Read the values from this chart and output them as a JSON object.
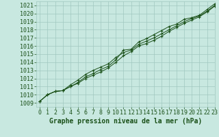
{
  "xlabel": "Graphe pression niveau de la mer (hPa)",
  "ylim": [
    1008.5,
    1021.5
  ],
  "xlim": [
    -0.5,
    23
  ],
  "yticks": [
    1009,
    1010,
    1011,
    1012,
    1013,
    1014,
    1015,
    1016,
    1017,
    1018,
    1019,
    1020,
    1021
  ],
  "xticks": [
    0,
    1,
    2,
    3,
    4,
    5,
    6,
    7,
    8,
    9,
    10,
    11,
    12,
    13,
    14,
    15,
    16,
    17,
    18,
    19,
    20,
    21,
    22,
    23
  ],
  "bg_color": "#c8e8e0",
  "grid_color": "#a0c8c0",
  "line_color": "#1a5018",
  "series1": [
    1009.2,
    1010.0,
    1010.4,
    1010.5,
    1011.0,
    1011.5,
    1012.2,
    1012.6,
    1013.1,
    1013.5,
    1014.3,
    1015.5,
    1015.6,
    1016.5,
    1016.9,
    1017.4,
    1017.9,
    1018.4,
    1018.7,
    1019.3,
    1019.5,
    1019.8,
    1020.5,
    1021.2
  ],
  "series2": [
    1009.2,
    1010.0,
    1010.4,
    1010.5,
    1011.2,
    1011.8,
    1012.5,
    1013.0,
    1013.4,
    1013.8,
    1014.6,
    1015.2,
    1015.5,
    1016.2,
    1016.6,
    1017.0,
    1017.5,
    1018.0,
    1018.5,
    1019.0,
    1019.4,
    1019.7,
    1020.3,
    1021.0
  ],
  "series3": [
    1009.2,
    1010.0,
    1010.4,
    1010.5,
    1011.0,
    1011.4,
    1012.0,
    1012.4,
    1012.8,
    1013.3,
    1014.0,
    1014.8,
    1015.3,
    1016.0,
    1016.3,
    1016.7,
    1017.2,
    1017.8,
    1018.3,
    1018.8,
    1019.2,
    1019.6,
    1020.2,
    1020.9
  ],
  "title_fontsize": 7,
  "tick_fontsize": 6
}
